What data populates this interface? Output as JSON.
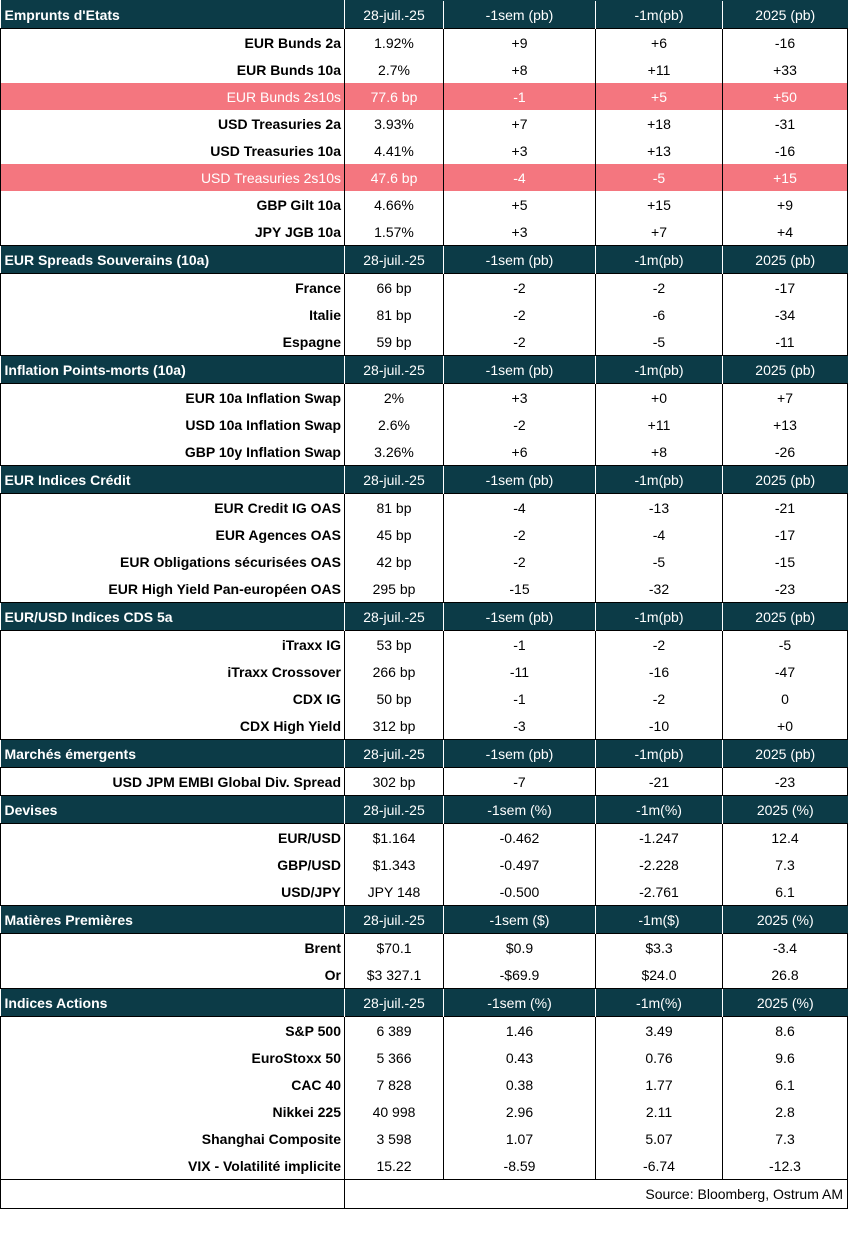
{
  "sections": [
    {
      "title": "Emprunts d'Etats",
      "columns": [
        "28-juil.-25",
        "-1sem (pb)",
        "-1m(pb)",
        "2025 (pb)"
      ],
      "rows": [
        {
          "label": "EUR Bunds 2a",
          "values": [
            "1.92%",
            "+9",
            "+6",
            "-16"
          ]
        },
        {
          "label": "EUR Bunds 10a",
          "values": [
            "2.7%",
            "+8",
            "+11",
            "+33"
          ]
        },
        {
          "label": "EUR Bunds 2s10s",
          "values": [
            "77.6 bp",
            "-1",
            "+5",
            "+50"
          ],
          "highlight": true
        },
        {
          "label": "USD Treasuries 2a",
          "values": [
            "3.93%",
            "+7",
            "+18",
            "-31"
          ]
        },
        {
          "label": "USD Treasuries 10a",
          "values": [
            "4.41%",
            "+3",
            "+13",
            "-16"
          ]
        },
        {
          "label": "USD Treasuries 2s10s",
          "values": [
            "47.6 bp",
            "-4",
            "-5",
            "+15"
          ],
          "highlight": true
        },
        {
          "label": "GBP Gilt 10a",
          "values": [
            "4.66%",
            "+5",
            "+15",
            "+9"
          ]
        },
        {
          "label": "JPY JGB  10a",
          "values": [
            "1.57%",
            "+3",
            "+7",
            "+4"
          ]
        }
      ]
    },
    {
      "title": "EUR Spreads Souverains (10a)",
      "columns": [
        "28-juil.-25",
        "-1sem (pb)",
        "-1m(pb)",
        "2025 (pb)"
      ],
      "rows": [
        {
          "label": "France",
          "values": [
            "66 bp",
            "-2",
            "-2",
            "-17"
          ]
        },
        {
          "label": "Italie",
          "values": [
            "81 bp",
            "-2",
            "-6",
            "-34"
          ]
        },
        {
          "label": "Espagne",
          "values": [
            "59 bp",
            "-2",
            "-5",
            "-11"
          ]
        }
      ]
    },
    {
      "title": " Inflation Points-morts (10a)",
      "columns": [
        "28-juil.-25",
        "-1sem (pb)",
        "-1m(pb)",
        "2025 (pb)"
      ],
      "rows": [
        {
          "label": "EUR 10a Inflation Swap",
          "values": [
            "2%",
            "+3",
            "+0",
            "+7"
          ]
        },
        {
          "label": "USD 10a Inflation Swap",
          "values": [
            "2.6%",
            "-2",
            "+11",
            "+13"
          ]
        },
        {
          "label": "GBP 10y Inflation Swap",
          "values": [
            "3.26%",
            "+6",
            "+8",
            "-26"
          ]
        }
      ]
    },
    {
      "title": "EUR Indices Crédit",
      "columns": [
        "28-juil.-25",
        "-1sem (pb)",
        "-1m(pb)",
        "2025 (pb)"
      ],
      "rows": [
        {
          "label": "EUR Credit IG OAS",
          "values": [
            "81 bp",
            "-4",
            "-13",
            "-21"
          ]
        },
        {
          "label": "EUR Agences OAS",
          "values": [
            "45 bp",
            "-2",
            "-4",
            "-17"
          ]
        },
        {
          "label": "EUR Obligations sécurisées OAS",
          "values": [
            "42 bp",
            "-2",
            "-5",
            "-15"
          ]
        },
        {
          "label": "EUR High Yield Pan-européen OAS",
          "values": [
            "295 bp",
            "-15",
            "-32",
            "-23"
          ]
        }
      ]
    },
    {
      "title": "EUR/USD Indices CDS 5a",
      "columns": [
        "28-juil.-25",
        "-1sem (pb)",
        "-1m(pb)",
        "2025 (pb)"
      ],
      "rows": [
        {
          "label": "iTraxx IG ",
          "values": [
            "53 bp",
            "-1",
            "-2",
            "-5"
          ]
        },
        {
          "label": "iTraxx Crossover ",
          "values": [
            "266 bp",
            "-11",
            "-16",
            "-47"
          ]
        },
        {
          "label": "CDX IG",
          "values": [
            "50 bp",
            "-1",
            "-2",
            "0"
          ]
        },
        {
          "label": "CDX High Yield",
          "values": [
            "312 bp",
            "-3",
            "-10",
            "+0"
          ]
        }
      ]
    },
    {
      "title": "Marchés émergents",
      "columns": [
        "28-juil.-25",
        "-1sem (pb)",
        "-1m(pb)",
        "2025 (pb)"
      ],
      "rows": [
        {
          "label": "USD JPM EMBI Global Div. Spread ",
          "values": [
            "302 bp",
            "-7",
            "-21",
            "-23"
          ]
        }
      ]
    },
    {
      "title": "Devises",
      "columns": [
        "28-juil.-25",
        "-1sem (%)",
        "-1m(%)",
        "2025 (%)"
      ],
      "rows": [
        {
          "label": "EUR/USD",
          "values": [
            "$1.164",
            "-0.462",
            "-1.247",
            "12.4"
          ]
        },
        {
          "label": "GBP/USD",
          "values": [
            "$1.343",
            "-0.497",
            "-2.228",
            "7.3"
          ]
        },
        {
          "label": "USD/JPY",
          "values": [
            "JPY 148",
            "-0.500",
            "-2.761",
            "6.1"
          ]
        }
      ]
    },
    {
      "title": "Matières Premières",
      "columns": [
        "28-juil.-25",
        "-1sem ($)",
        "-1m($)",
        "2025 (%)"
      ],
      "rows": [
        {
          "label": "Brent",
          "values": [
            "$70.1",
            "$0.9",
            "$3.3",
            "-3.4"
          ]
        },
        {
          "label": "Or",
          "values": [
            "$3 327.1",
            "-$69.9",
            "$24.0",
            "26.8"
          ]
        }
      ]
    },
    {
      "title": "Indices Actions",
      "columns": [
        "28-juil.-25",
        "-1sem (%)",
        "-1m(%)",
        "2025 (%)"
      ],
      "rows": [
        {
          "label": "S&P 500",
          "values": [
            "6 389",
            "1.46",
            "3.49",
            "8.6"
          ]
        },
        {
          "label": "EuroStoxx 50",
          "values": [
            "5 366",
            "0.43",
            "0.76",
            "9.6"
          ]
        },
        {
          "label": "CAC 40",
          "values": [
            "7 828",
            "0.38",
            "1.77",
            "6.1"
          ]
        },
        {
          "label": "Nikkei 225",
          "values": [
            "40 998",
            "2.96",
            "2.11",
            "2.8"
          ]
        },
        {
          "label": "Shanghai Composite",
          "values": [
            "3 598",
            "1.07",
            "5.07",
            "7.3"
          ]
        },
        {
          "label": "VIX - Volatilité implicite",
          "values": [
            "15.22",
            "-8.59",
            "-6.74",
            "-12.3"
          ]
        }
      ]
    }
  ],
  "source": "Source: Bloomberg, Ostrum AM",
  "colors": {
    "header_bg": "#0c3b47",
    "highlight_bg": "#f4767f"
  }
}
